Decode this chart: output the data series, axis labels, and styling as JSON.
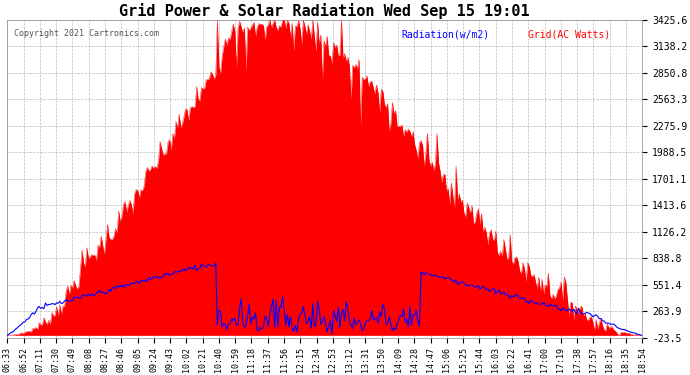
{
  "title": "Grid Power & Solar Radiation Wed Sep 15 19:01",
  "copyright": "Copyright 2021 Cartronics.com",
  "legend_radiation": "Radiation(w/m2)",
  "legend_grid": "Grid(AC Watts)",
  "yticks": [
    3425.6,
    3138.2,
    2850.8,
    2563.3,
    2275.9,
    1988.5,
    1701.1,
    1413.6,
    1126.2,
    838.8,
    551.4,
    263.9,
    -23.5
  ],
  "ymin": -23.5,
  "ymax": 3425.6,
  "bg_color": "#ffffff",
  "plot_bg_color": "#ffffff",
  "grid_color": "#aaaaaa",
  "radiation_color": "#0000ff",
  "grid_power_color": "#ff0000",
  "fill_color": "#ff0000",
  "title_color": "#000000",
  "label_color": "#000000",
  "copyright_color": "#555555",
  "xtick_labels": [
    "06:33",
    "06:52",
    "07:11",
    "07:30",
    "07:49",
    "08:08",
    "08:27",
    "08:46",
    "09:05",
    "09:24",
    "09:43",
    "10:02",
    "10:21",
    "10:40",
    "10:59",
    "11:18",
    "11:37",
    "11:56",
    "12:15",
    "12:34",
    "12:53",
    "13:12",
    "13:31",
    "13:50",
    "14:09",
    "14:28",
    "14:47",
    "15:06",
    "15:25",
    "15:44",
    "16:03",
    "16:22",
    "16:41",
    "17:00",
    "17:19",
    "17:38",
    "17:57",
    "18:16",
    "18:35",
    "18:54"
  ],
  "n_points": 400,
  "title_fontsize": 11,
  "tick_fontsize": 6,
  "ytick_fontsize": 7
}
